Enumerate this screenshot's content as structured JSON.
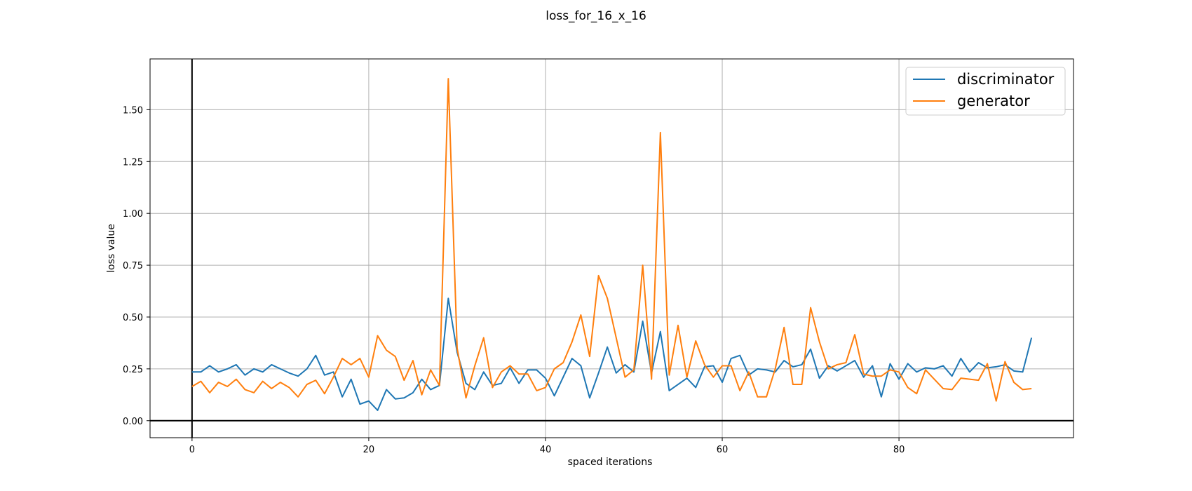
{
  "chart_data": {
    "type": "line",
    "title": "loss_for_16_x_16",
    "xlabel": "spaced iterations",
    "ylabel": "loss value",
    "xlim": [
      -4.75,
      99.75
    ],
    "ylim": [
      -0.082,
      1.745
    ],
    "xticks": [
      0,
      20,
      40,
      60,
      80
    ],
    "xtick_labels": [
      "0",
      "20",
      "40",
      "60",
      "80"
    ],
    "yticks": [
      0.0,
      0.25,
      0.5,
      0.75,
      1.0,
      1.25,
      1.5
    ],
    "ytick_labels": [
      "0.00",
      "0.25",
      "0.50",
      "0.75",
      "1.00",
      "1.25",
      "1.50"
    ],
    "grid": true,
    "legend_position": "top-right",
    "reference_lines": {
      "x": 0,
      "y": 0
    },
    "series": [
      {
        "name": "discriminator",
        "color": "#1f77b4",
        "values": [
          0.235,
          0.235,
          0.265,
          0.235,
          0.25,
          0.27,
          0.22,
          0.25,
          0.235,
          0.27,
          0.25,
          0.23,
          0.215,
          0.25,
          0.315,
          0.22,
          0.235,
          0.115,
          0.2,
          0.08,
          0.095,
          0.05,
          0.15,
          0.105,
          0.11,
          0.135,
          0.2,
          0.15,
          0.17,
          0.59,
          0.33,
          0.18,
          0.15,
          0.235,
          0.17,
          0.18,
          0.255,
          0.18,
          0.245,
          0.245,
          0.205,
          0.12,
          0.21,
          0.3,
          0.265,
          0.11,
          0.23,
          0.355,
          0.23,
          0.27,
          0.235,
          0.48,
          0.23,
          0.43,
          0.145,
          0.175,
          0.205,
          0.16,
          0.26,
          0.265,
          0.185,
          0.3,
          0.315,
          0.22,
          0.25,
          0.245,
          0.235,
          0.29,
          0.26,
          0.27,
          0.345,
          0.205,
          0.265,
          0.24,
          0.265,
          0.29,
          0.21,
          0.265,
          0.115,
          0.275,
          0.2,
          0.275,
          0.235,
          0.255,
          0.25,
          0.265,
          0.215,
          0.3,
          0.235,
          0.28,
          0.255,
          0.26,
          0.27,
          0.24,
          0.235,
          0.4
        ]
      },
      {
        "name": "generator",
        "color": "#ff7f0e",
        "values": [
          0.165,
          0.19,
          0.135,
          0.185,
          0.165,
          0.2,
          0.15,
          0.135,
          0.19,
          0.155,
          0.185,
          0.16,
          0.115,
          0.175,
          0.195,
          0.13,
          0.21,
          0.3,
          0.27,
          0.3,
          0.21,
          0.41,
          0.34,
          0.31,
          0.195,
          0.29,
          0.125,
          0.245,
          0.17,
          1.65,
          0.35,
          0.11,
          0.265,
          0.4,
          0.16,
          0.235,
          0.265,
          0.225,
          0.225,
          0.145,
          0.16,
          0.25,
          0.28,
          0.38,
          0.51,
          0.31,
          0.7,
          0.59,
          0.4,
          0.21,
          0.245,
          0.75,
          0.2,
          1.39,
          0.22,
          0.46,
          0.21,
          0.385,
          0.27,
          0.21,
          0.265,
          0.265,
          0.145,
          0.235,
          0.115,
          0.115,
          0.25,
          0.45,
          0.175,
          0.175,
          0.545,
          0.38,
          0.25,
          0.27,
          0.28,
          0.415,
          0.225,
          0.215,
          0.215,
          0.245,
          0.235,
          0.16,
          0.13,
          0.245,
          0.2,
          0.155,
          0.15,
          0.205,
          0.2,
          0.195,
          0.275,
          0.095,
          0.285,
          0.185,
          0.15,
          0.155
        ]
      }
    ]
  }
}
